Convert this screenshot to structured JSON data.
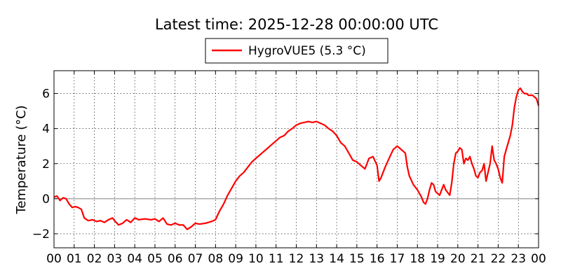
{
  "chart_data": {
    "type": "line",
    "title": "Latest time: 2025-12-28 00:00:00 UTC",
    "ylabel": "Temperature (°C)",
    "xlabel": "",
    "xlim": [
      0,
      24
    ],
    "ylim": [
      -2.8,
      7.3
    ],
    "xticks": [
      0,
      1,
      2,
      3,
      4,
      5,
      6,
      7,
      8,
      9,
      10,
      11,
      12,
      13,
      14,
      15,
      16,
      17,
      18,
      19,
      20,
      21,
      22,
      23,
      24
    ],
    "xtick_labels": [
      "00",
      "01",
      "02",
      "03",
      "04",
      "05",
      "06",
      "07",
      "08",
      "09",
      "10",
      "11",
      "12",
      "13",
      "14",
      "15",
      "16",
      "17",
      "18",
      "19",
      "20",
      "21",
      "22",
      "23",
      "00"
    ],
    "yticks": [
      -2,
      0,
      2,
      4,
      6
    ],
    "ytick_labels": [
      "−2",
      "0",
      "2",
      "4",
      "6"
    ],
    "grid": true,
    "zero_line": true,
    "legend_position": "top-center",
    "series": [
      {
        "name": "HygroVUE5 (5.3 °C)",
        "color": "#ff0000",
        "points": [
          [
            0.0,
            0.1
          ],
          [
            0.15,
            0.15
          ],
          [
            0.3,
            -0.1
          ],
          [
            0.45,
            0.05
          ],
          [
            0.6,
            0.0
          ],
          [
            0.75,
            -0.3
          ],
          [
            0.9,
            -0.5
          ],
          [
            1.05,
            -0.45
          ],
          [
            1.2,
            -0.5
          ],
          [
            1.35,
            -0.6
          ],
          [
            1.5,
            -1.1
          ],
          [
            1.7,
            -1.25
          ],
          [
            1.9,
            -1.2
          ],
          [
            2.1,
            -1.3
          ],
          [
            2.3,
            -1.25
          ],
          [
            2.5,
            -1.35
          ],
          [
            2.7,
            -1.2
          ],
          [
            2.9,
            -1.1
          ],
          [
            3.0,
            -1.25
          ],
          [
            3.2,
            -1.5
          ],
          [
            3.4,
            -1.4
          ],
          [
            3.6,
            -1.2
          ],
          [
            3.8,
            -1.35
          ],
          [
            4.0,
            -1.1
          ],
          [
            4.2,
            -1.2
          ],
          [
            4.5,
            -1.15
          ],
          [
            4.8,
            -1.2
          ],
          [
            5.0,
            -1.15
          ],
          [
            5.2,
            -1.3
          ],
          [
            5.4,
            -1.1
          ],
          [
            5.6,
            -1.45
          ],
          [
            5.8,
            -1.5
          ],
          [
            6.0,
            -1.4
          ],
          [
            6.2,
            -1.5
          ],
          [
            6.4,
            -1.5
          ],
          [
            6.6,
            -1.75
          ],
          [
            6.8,
            -1.6
          ],
          [
            7.0,
            -1.4
          ],
          [
            7.2,
            -1.45
          ],
          [
            7.5,
            -1.4
          ],
          [
            7.8,
            -1.3
          ],
          [
            8.0,
            -1.2
          ],
          [
            8.2,
            -0.7
          ],
          [
            8.4,
            -0.3
          ],
          [
            8.6,
            0.2
          ],
          [
            8.8,
            0.6
          ],
          [
            9.0,
            1.0
          ],
          [
            9.2,
            1.3
          ],
          [
            9.4,
            1.5
          ],
          [
            9.6,
            1.8
          ],
          [
            9.8,
            2.1
          ],
          [
            10.0,
            2.3
          ],
          [
            10.2,
            2.5
          ],
          [
            10.4,
            2.7
          ],
          [
            10.6,
            2.9
          ],
          [
            10.8,
            3.1
          ],
          [
            11.0,
            3.3
          ],
          [
            11.2,
            3.5
          ],
          [
            11.4,
            3.6
          ],
          [
            11.6,
            3.85
          ],
          [
            11.8,
            4.0
          ],
          [
            12.0,
            4.2
          ],
          [
            12.2,
            4.3
          ],
          [
            12.4,
            4.35
          ],
          [
            12.6,
            4.4
          ],
          [
            12.8,
            4.35
          ],
          [
            13.0,
            4.4
          ],
          [
            13.2,
            4.3
          ],
          [
            13.4,
            4.2
          ],
          [
            13.6,
            4.0
          ],
          [
            13.8,
            3.85
          ],
          [
            14.0,
            3.6
          ],
          [
            14.2,
            3.2
          ],
          [
            14.4,
            3.0
          ],
          [
            14.6,
            2.6
          ],
          [
            14.8,
            2.2
          ],
          [
            15.0,
            2.1
          ],
          [
            15.2,
            1.9
          ],
          [
            15.4,
            1.7
          ],
          [
            15.6,
            2.3
          ],
          [
            15.8,
            2.4
          ],
          [
            16.0,
            1.9
          ],
          [
            16.1,
            1.0
          ],
          [
            16.2,
            1.2
          ],
          [
            16.4,
            1.8
          ],
          [
            16.6,
            2.3
          ],
          [
            16.8,
            2.8
          ],
          [
            17.0,
            3.0
          ],
          [
            17.2,
            2.8
          ],
          [
            17.4,
            2.6
          ],
          [
            17.5,
            1.8
          ],
          [
            17.6,
            1.3
          ],
          [
            17.8,
            0.8
          ],
          [
            18.0,
            0.5
          ],
          [
            18.2,
            0.1
          ],
          [
            18.3,
            -0.2
          ],
          [
            18.4,
            -0.3
          ],
          [
            18.5,
            0.0
          ],
          [
            18.6,
            0.5
          ],
          [
            18.7,
            0.9
          ],
          [
            18.8,
            0.8
          ],
          [
            18.9,
            0.4
          ],
          [
            19.0,
            0.3
          ],
          [
            19.1,
            0.2
          ],
          [
            19.2,
            0.5
          ],
          [
            19.3,
            0.8
          ],
          [
            19.4,
            0.5
          ],
          [
            19.6,
            0.2
          ],
          [
            19.7,
            0.9
          ],
          [
            19.8,
            2.0
          ],
          [
            19.9,
            2.6
          ],
          [
            20.0,
            2.7
          ],
          [
            20.1,
            2.9
          ],
          [
            20.2,
            2.8
          ],
          [
            20.3,
            2.0
          ],
          [
            20.4,
            2.3
          ],
          [
            20.5,
            2.2
          ],
          [
            20.6,
            2.4
          ],
          [
            20.7,
            2.0
          ],
          [
            20.8,
            1.7
          ],
          [
            20.9,
            1.3
          ],
          [
            21.0,
            1.2
          ],
          [
            21.1,
            1.5
          ],
          [
            21.2,
            1.6
          ],
          [
            21.3,
            2.0
          ],
          [
            21.4,
            1.0
          ],
          [
            21.5,
            1.5
          ],
          [
            21.6,
            2.0
          ],
          [
            21.7,
            3.0
          ],
          [
            21.8,
            2.2
          ],
          [
            21.9,
            2.0
          ],
          [
            22.0,
            1.7
          ],
          [
            22.1,
            1.2
          ],
          [
            22.2,
            0.9
          ],
          [
            22.3,
            2.4
          ],
          [
            22.4,
            2.8
          ],
          [
            22.5,
            3.2
          ],
          [
            22.6,
            3.6
          ],
          [
            22.7,
            4.2
          ],
          [
            22.8,
            5.2
          ],
          [
            22.9,
            5.8
          ],
          [
            23.0,
            6.2
          ],
          [
            23.1,
            6.3
          ],
          [
            23.2,
            6.1
          ],
          [
            23.3,
            6.0
          ],
          [
            23.4,
            6.0
          ],
          [
            23.5,
            5.9
          ],
          [
            23.6,
            5.9
          ],
          [
            23.7,
            5.9
          ],
          [
            23.8,
            5.8
          ],
          [
            23.9,
            5.7
          ],
          [
            24.0,
            5.3
          ]
        ]
      }
    ]
  }
}
